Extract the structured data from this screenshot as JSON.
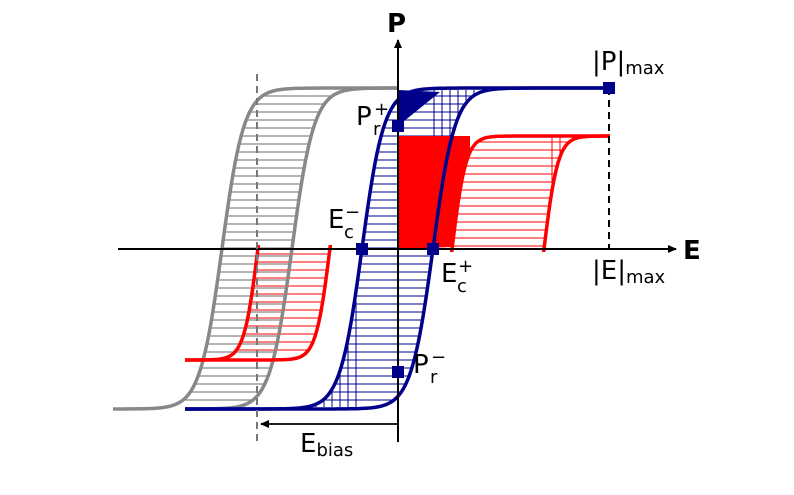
{
  "axes": {
    "x_title": "E",
    "y_title": "P"
  },
  "labels": {
    "p_max": {
      "main": "|P|",
      "sub": "max"
    },
    "e_max": {
      "main": "|E|",
      "sub": "max"
    },
    "pr_plus": {
      "main": "P",
      "sub": "r",
      "sup": "+"
    },
    "pr_minus": {
      "main": "P",
      "sub": "r",
      "sup": "−"
    },
    "ec_plus": {
      "main": "E",
      "sub": "c",
      "sup": "+"
    },
    "ec_minus": {
      "main": "E",
      "sub": "c",
      "sup": "−"
    },
    "e_bias": {
      "main": "E",
      "sub": "bias"
    }
  },
  "colors": {
    "gray_loop": "#888888",
    "blue_loop": "#00008b",
    "red_loop": "#ff0000",
    "axis": "#000000"
  }
}
